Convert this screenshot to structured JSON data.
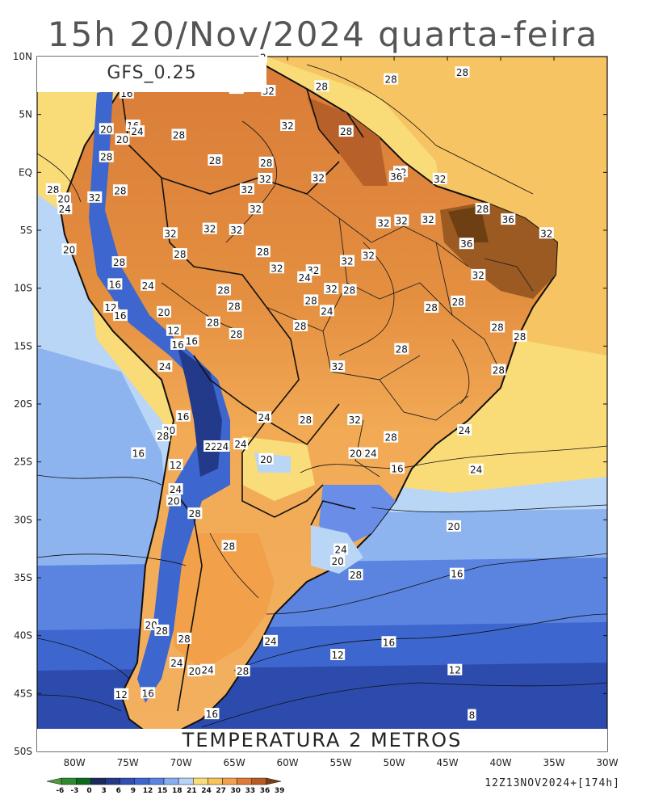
{
  "title": "15h 20/Nov/2024 quarta-feira",
  "model": "GFS_0.25",
  "product": "TEMPERATURA 2 METROS",
  "run": "12Z13NOV2024+[174h]",
  "lat_labels": [
    "10N",
    "5N",
    "EQ",
    "5S",
    "10S",
    "15S",
    "20S",
    "25S",
    "30S",
    "35S",
    "40S",
    "45S",
    "50S"
  ],
  "lon_labels": [
    "80W",
    "75W",
    "70W",
    "65W",
    "60W",
    "55W",
    "50W",
    "45W",
    "40W",
    "35W",
    "30W"
  ],
  "colorbar": {
    "ticks": [
      "-6",
      "-3",
      "0",
      "3",
      "6",
      "9",
      "12",
      "15",
      "18",
      "21",
      "24",
      "27",
      "30",
      "33",
      "36",
      "39"
    ],
    "colors": [
      "#4f9a3c",
      "#2e8a2e",
      "#0c6a1c",
      "#1b2a5c",
      "#233a8a",
      "#2f4fb4",
      "#3d66cf",
      "#5b84e0",
      "#86aef0",
      "#b7d4f6",
      "#f9dd7a",
      "#f8c35a",
      "#f2a14a",
      "#e07a36",
      "#b85a24",
      "#7a3e14"
    ]
  },
  "contour_labels": [
    {
      "t": "16",
      "lon": -75.1,
      "lat": 6.8
    },
    {
      "t": "20",
      "lon": -77.0,
      "lat": 3.7
    },
    {
      "t": "16",
      "lon": -74.5,
      "lat": 4.0
    },
    {
      "t": "24",
      "lon": -74.1,
      "lat": 3.5
    },
    {
      "t": "20",
      "lon": -75.5,
      "lat": 2.8
    },
    {
      "t": "28",
      "lon": -77.0,
      "lat": 1.3
    },
    {
      "t": "28",
      "lon": -70.2,
      "lat": 3.2
    },
    {
      "t": "28",
      "lon": -64.8,
      "lat": 7.2
    },
    {
      "t": "32",
      "lon": -61.8,
      "lat": 7.0
    },
    {
      "t": "28",
      "lon": -56.8,
      "lat": 7.4
    },
    {
      "t": "28",
      "lon": -50.3,
      "lat": 8.0
    },
    {
      "t": "28",
      "lon": -43.6,
      "lat": 8.6
    },
    {
      "t": "32",
      "lon": -60.0,
      "lat": 4.0
    },
    {
      "t": "28",
      "lon": -54.5,
      "lat": 3.5
    },
    {
      "t": "28",
      "lon": -66.8,
      "lat": 1.0
    },
    {
      "t": "28",
      "lon": -62.0,
      "lat": 0.8
    },
    {
      "t": "32",
      "lon": -62.1,
      "lat": -0.6
    },
    {
      "t": "32",
      "lon": -57.1,
      "lat": -0.5
    },
    {
      "t": "32",
      "lon": -49.4,
      "lat": 0.0
    },
    {
      "t": "36",
      "lon": -49.8,
      "lat": -0.4
    },
    {
      "t": "32",
      "lon": -45.7,
      "lat": -0.6
    },
    {
      "t": "28",
      "lon": -82.0,
      "lat": -1.5
    },
    {
      "t": "20",
      "lon": -81.0,
      "lat": -2.3
    },
    {
      "t": "32",
      "lon": -78.1,
      "lat": -2.2
    },
    {
      "t": "28",
      "lon": -75.7,
      "lat": -1.6
    },
    {
      "t": "24",
      "lon": -80.9,
      "lat": -3.2
    },
    {
      "t": "32",
      "lon": -63.0,
      "lat": -3.2
    },
    {
      "t": "32",
      "lon": -63.8,
      "lat": -1.5
    },
    {
      "t": "32",
      "lon": -49.3,
      "lat": -4.2
    },
    {
      "t": "32",
      "lon": -51.0,
      "lat": -4.4
    },
    {
      "t": "32",
      "lon": -46.8,
      "lat": -4.1
    },
    {
      "t": "28",
      "lon": -41.7,
      "lat": -3.2
    },
    {
      "t": "36",
      "lon": -39.3,
      "lat": -4.1
    },
    {
      "t": "32",
      "lon": -35.7,
      "lat": -5.3
    },
    {
      "t": "32",
      "lon": -71.0,
      "lat": -5.3
    },
    {
      "t": "32",
      "lon": -67.3,
      "lat": -4.9
    },
    {
      "t": "32",
      "lon": -64.8,
      "lat": -5.0
    },
    {
      "t": "36",
      "lon": -43.2,
      "lat": -6.2
    },
    {
      "t": "20",
      "lon": -80.5,
      "lat": -6.7
    },
    {
      "t": "28",
      "lon": -70.1,
      "lat": -7.1
    },
    {
      "t": "28",
      "lon": -62.3,
      "lat": -6.9
    },
    {
      "t": "32",
      "lon": -61.0,
      "lat": -8.3
    },
    {
      "t": "32",
      "lon": -52.4,
      "lat": -7.2
    },
    {
      "t": "28",
      "lon": -75.8,
      "lat": -7.8
    },
    {
      "t": "32",
      "lon": -54.4,
      "lat": -7.7
    },
    {
      "t": "32",
      "lon": -57.6,
      "lat": -8.5
    },
    {
      "t": "32",
      "lon": -42.1,
      "lat": -8.9
    },
    {
      "t": "24",
      "lon": -58.4,
      "lat": -9.1
    },
    {
      "t": "28",
      "lon": -66.0,
      "lat": -10.2
    },
    {
      "t": "24",
      "lon": -73.1,
      "lat": -9.8
    },
    {
      "t": "16",
      "lon": -76.2,
      "lat": -9.7
    },
    {
      "t": "28",
      "lon": -57.8,
      "lat": -11.1
    },
    {
      "t": "32",
      "lon": -55.9,
      "lat": -10.1
    },
    {
      "t": "28",
      "lon": -54.2,
      "lat": -10.2
    },
    {
      "t": "28",
      "lon": -44.0,
      "lat": -11.2
    },
    {
      "t": "28",
      "lon": -65.0,
      "lat": -11.6
    },
    {
      "t": "12",
      "lon": -76.6,
      "lat": -11.7
    },
    {
      "t": "20",
      "lon": -71.6,
      "lat": -12.1
    },
    {
      "t": "16",
      "lon": -75.7,
      "lat": -12.4
    },
    {
      "t": "24",
      "lon": -56.3,
      "lat": -12.0
    },
    {
      "t": "28",
      "lon": -46.5,
      "lat": -11.7
    },
    {
      "t": "28",
      "lon": -67.0,
      "lat": -13.0
    },
    {
      "t": "28",
      "lon": -58.8,
      "lat": -13.3
    },
    {
      "t": "28",
      "lon": -40.3,
      "lat": -13.4
    },
    {
      "t": "12",
      "lon": -70.7,
      "lat": -13.7
    },
    {
      "t": "28",
      "lon": -64.8,
      "lat": -14.0
    },
    {
      "t": "28",
      "lon": -38.2,
      "lat": -14.2
    },
    {
      "t": "16",
      "lon": -70.3,
      "lat": -14.9
    },
    {
      "t": "16",
      "lon": -69.0,
      "lat": -14.6
    },
    {
      "t": "28",
      "lon": -49.3,
      "lat": -15.3
    },
    {
      "t": "24",
      "lon": -71.5,
      "lat": -16.8
    },
    {
      "t": "32",
      "lon": -55.3,
      "lat": -16.8
    },
    {
      "t": "28",
      "lon": -40.2,
      "lat": -17.1
    },
    {
      "t": "16",
      "lon": -69.8,
      "lat": -21.1
    },
    {
      "t": "24",
      "lon": -62.2,
      "lat": -21.2
    },
    {
      "t": "28",
      "lon": -58.3,
      "lat": -21.4
    },
    {
      "t": "32",
      "lon": -53.7,
      "lat": -21.4
    },
    {
      "t": "24",
      "lon": -43.4,
      "lat": -22.3
    },
    {
      "t": "20",
      "lon": -71.1,
      "lat": -22.3
    },
    {
      "t": "28",
      "lon": -71.7,
      "lat": -22.8
    },
    {
      "t": "28",
      "lon": -50.3,
      "lat": -22.9
    },
    {
      "t": "22",
      "lon": -67.2,
      "lat": -23.7
    },
    {
      "t": "24",
      "lon": -66.1,
      "lat": -23.7
    },
    {
      "t": "24",
      "lon": -64.4,
      "lat": -23.5
    },
    {
      "t": "16",
      "lon": -74.0,
      "lat": -24.3
    },
    {
      "t": "20",
      "lon": -62.0,
      "lat": -24.8
    },
    {
      "t": "20",
      "lon": -53.6,
      "lat": -24.3
    },
    {
      "t": "24",
      "lon": -52.2,
      "lat": -24.3
    },
    {
      "t": "12",
      "lon": -70.5,
      "lat": -25.3
    },
    {
      "t": "16",
      "lon": -49.7,
      "lat": -25.6
    },
    {
      "t": "24",
      "lon": -70.5,
      "lat": -27.4
    },
    {
      "t": "20",
      "lon": -70.7,
      "lat": -28.4
    },
    {
      "t": "28",
      "lon": -68.7,
      "lat": -29.5
    },
    {
      "t": "24",
      "lon": -55.0,
      "lat": -32.6
    },
    {
      "t": "20",
      "lon": -55.3,
      "lat": -33.6
    },
    {
      "t": "28",
      "lon": -65.5,
      "lat": -32.3
    },
    {
      "t": "28",
      "lon": -53.6,
      "lat": -34.8
    },
    {
      "t": "20",
      "lon": -72.8,
      "lat": -39.1
    },
    {
      "t": "28",
      "lon": -71.8,
      "lat": -39.6
    },
    {
      "t": "28",
      "lon": -69.7,
      "lat": -40.3
    },
    {
      "t": "24",
      "lon": -61.6,
      "lat": -40.5
    },
    {
      "t": "24",
      "lon": -70.4,
      "lat": -42.4
    },
    {
      "t": "20",
      "lon": -68.7,
      "lat": -43.1
    },
    {
      "t": "24",
      "lon": -67.5,
      "lat": -43.0
    },
    {
      "t": "28",
      "lon": -64.2,
      "lat": -43.1
    },
    {
      "t": "12",
      "lon": -75.6,
      "lat": -45.1
    },
    {
      "t": "16",
      "lon": -73.1,
      "lat": -45.0
    },
    {
      "t": "16",
      "lon": -67.1,
      "lat": -46.8
    },
    {
      "t": "12",
      "lon": -55.3,
      "lat": -41.7
    },
    {
      "t": "16",
      "lon": -50.5,
      "lat": -40.6
    },
    {
      "t": "12",
      "lon": -44.3,
      "lat": -43.0
    },
    {
      "t": "8",
      "lon": -42.7,
      "lat": -46.9
    },
    {
      "t": "16",
      "lon": -44.1,
      "lat": -34.7
    },
    {
      "t": "20",
      "lon": -44.4,
      "lat": -30.6
    },
    {
      "t": "24",
      "lon": -42.3,
      "lat": -25.7
    },
    {
      "t": "2",
      "lon": -62.3,
      "lat": 9.9
    }
  ]
}
